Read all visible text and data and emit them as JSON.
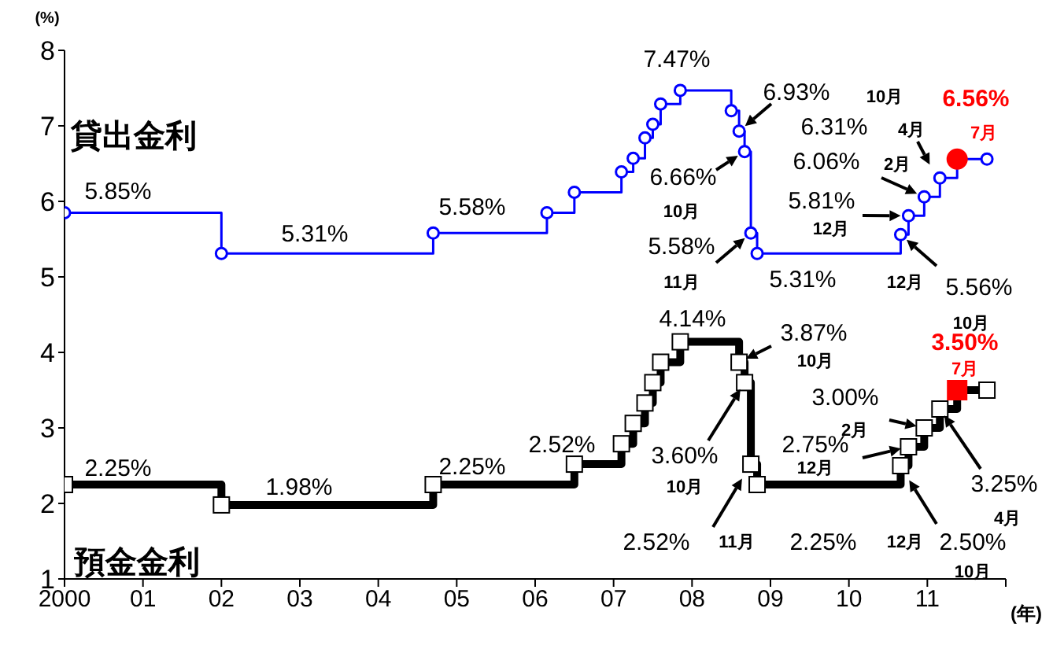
{
  "chart_data": {
    "type": "step",
    "ylabel": "(%)",
    "xlabel": "(年)",
    "xlim": [
      2000,
      2012
    ],
    "ylim": [
      1,
      8
    ],
    "yticks": [
      1,
      2,
      3,
      4,
      5,
      6,
      7,
      8
    ],
    "xticks": [
      {
        "value": 2000,
        "label": "2000"
      },
      {
        "value": 2001,
        "label": "01"
      },
      {
        "value": 2002,
        "label": "02"
      },
      {
        "value": 2003,
        "label": "03"
      },
      {
        "value": 2004,
        "label": "04"
      },
      {
        "value": 2005,
        "label": "05"
      },
      {
        "value": 2006,
        "label": "06"
      },
      {
        "value": 2007,
        "label": "07"
      },
      {
        "value": 2008,
        "label": "08"
      },
      {
        "value": 2009,
        "label": "09"
      },
      {
        "value": 2010,
        "label": "10"
      },
      {
        "value": 2011,
        "label": "11"
      },
      {
        "value": 2012,
        "label": null
      }
    ],
    "series": [
      {
        "name": "貸出金利",
        "color": "#0000ff",
        "colors": [
          "#0000ff",
          "#0000ff",
          "#0000ff",
          "#0000ff",
          "#0000ff",
          "#0000ff",
          "#0000ff",
          "#0000ff",
          "#0000ff",
          "#0000ff",
          "#0000ff",
          "#0000ff",
          "#0000ff",
          "#0000ff",
          "#0000ff",
          "#0000ff",
          "#0000ff",
          "#0000ff",
          "#0000ff",
          "#0000ff",
          "#ff0000",
          "#0000ff"
        ],
        "marker": "circle",
        "x": [
          2000,
          2002.0,
          2004.7,
          2006.15,
          2006.5,
          2007.1,
          2007.25,
          2007.4,
          2007.5,
          2007.6,
          2007.85,
          2008.5,
          2008.6,
          2008.67,
          2008.75,
          2008.83,
          2010.66,
          2010.76,
          2010.96,
          2011.16,
          2011.38,
          2011.76
        ],
        "values": [
          5.85,
          5.31,
          5.58,
          5.85,
          6.12,
          6.39,
          6.57,
          6.84,
          7.02,
          7.29,
          7.47,
          7.2,
          6.93,
          6.66,
          5.58,
          5.31,
          5.56,
          5.81,
          6.06,
          6.31,
          6.56,
          6.56
        ]
      },
      {
        "name": "預金金利",
        "color": "#000000",
        "colors": [
          "#000000",
          "#000000",
          "#000000",
          "#000000",
          "#000000",
          "#000000",
          "#000000",
          "#000000",
          "#000000",
          "#000000",
          "#000000",
          "#000000",
          "#000000",
          "#000000",
          "#000000",
          "#000000",
          "#000000",
          "#000000",
          "#ff0000",
          "#000000"
        ],
        "marker": "square",
        "x": [
          2000,
          2002.0,
          2004.7,
          2006.5,
          2007.1,
          2007.25,
          2007.4,
          2007.5,
          2007.6,
          2007.85,
          2008.6,
          2008.67,
          2008.75,
          2008.83,
          2010.66,
          2010.76,
          2010.96,
          2011.16,
          2011.38,
          2011.76
        ],
        "values": [
          2.25,
          1.98,
          2.25,
          2.52,
          2.79,
          3.06,
          3.33,
          3.6,
          3.87,
          4.14,
          3.87,
          3.6,
          2.52,
          2.25,
          2.5,
          2.75,
          3.0,
          3.25,
          3.5,
          3.5
        ]
      }
    ],
    "annotations": [
      {
        "text": "5.85%",
        "x": 2001,
        "y": 5.85
      },
      {
        "text": "5.31%",
        "x": 2003.3,
        "y": 5.31
      },
      {
        "text": "5.58%",
        "x": 2005.5,
        "y": 5.58
      },
      {
        "text": "7.47%",
        "x": 2008.2,
        "y": 7.47
      },
      {
        "text": "6.93%",
        "x": 2008.6,
        "y": 6.93
      },
      "10月",
      {
        "text": "6.66%",
        "x": 2008.67,
        "y": 6.66
      },
      "10月",
      {
        "text": "5.58%",
        "x": 2008.75,
        "y": 5.58
      },
      "11月",
      {
        "text": "5.31%",
        "x": 2009.9,
        "y": 5.31
      },
      "12月",
      {
        "text": "5.81%",
        "x": 2010.76,
        "y": 5.81
      },
      "12月",
      {
        "text": "6.06%",
        "x": 2010.96,
        "y": 6.06
      },
      "2月",
      "6.31%",
      "4月",
      {
        "text": "6.56%",
        "x": 2011.38,
        "y": 6.56
      },
      "7月",
      {
        "text": "5.56%",
        "x": 2010.66,
        "y": 5.56
      },
      "10月",
      {
        "text": "2.25%",
        "x": 2001,
        "y": 2.25
      },
      {
        "text": "1.98%",
        "x": 2003.3,
        "y": 1.98
      },
      {
        "text": "2.25%",
        "x": 2005.5,
        "y": 2.25
      },
      {
        "text": "2.52%",
        "x": 2006.8,
        "y": 2.52
      },
      {
        "text": "4.14%",
        "x": 2008.2,
        "y": 4.14
      },
      {
        "text": "3.87%",
        "x": 2008.6,
        "y": 3.87
      },
      "10月",
      {
        "text": "3.60%",
        "x": 2008.67,
        "y": 3.6
      },
      "10月",
      "2.52%",
      "11月",
      {
        "text": "2.25%",
        "x": 2009.9,
        "y": 2.25
      },
      "12月",
      "2.50%",
      "10月",
      {
        "text": "2.75%",
        "x": 2010.76,
        "y": 2.75
      },
      "12月",
      {
        "text": "3.00%",
        "x": 2010.96,
        "y": 3.0
      },
      "2月",
      {
        "text": "3.25%",
        "x": 2011.16,
        "y": 3.25
      },
      "4月",
      {
        "text": "3.50%",
        "x": 2011.38,
        "y": 3.5
      },
      "7月"
    ]
  }
}
